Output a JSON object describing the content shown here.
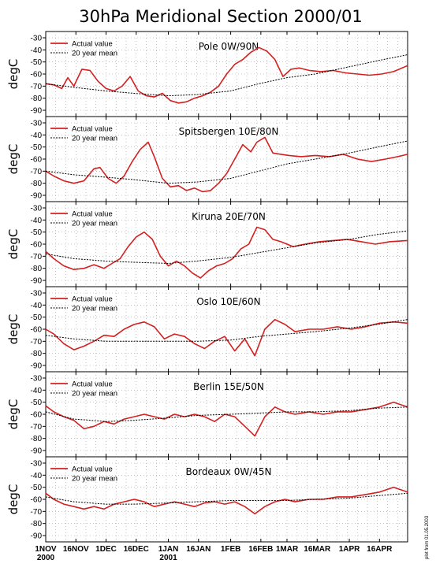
{
  "chart_data": {
    "type": "line",
    "title": "30hPa Meridional Section 2000/01",
    "ylabel": "degC",
    "footnote": "plot from 01.05.2003",
    "ylim": [
      -90,
      -30
    ],
    "yticks": [
      "-30",
      "-40",
      "-50",
      "-60",
      "-70",
      "-80",
      "-90"
    ],
    "xlim": [
      "2000-11-01",
      "2001-04-30"
    ],
    "xticks": [
      {
        "date": "2000-11-01",
        "label": "1NOV",
        "sub": "2000"
      },
      {
        "date": "2000-11-16",
        "label": "16NOV",
        "sub": ""
      },
      {
        "date": "2000-12-01",
        "label": "1DEC",
        "sub": ""
      },
      {
        "date": "2000-12-16",
        "label": "16DEC",
        "sub": ""
      },
      {
        "date": "2001-01-01",
        "label": "1JAN",
        "sub": "2001"
      },
      {
        "date": "2001-01-16",
        "label": "16JAN",
        "sub": ""
      },
      {
        "date": "2001-02-01",
        "label": "1FEB",
        "sub": ""
      },
      {
        "date": "2001-02-16",
        "label": "16FEB",
        "sub": ""
      },
      {
        "date": "2001-03-01",
        "label": "1MAR",
        "sub": ""
      },
      {
        "date": "2001-03-16",
        "label": "16MAR",
        "sub": ""
      },
      {
        "date": "2001-04-01",
        "label": "1APR",
        "sub": ""
      },
      {
        "date": "2001-04-16",
        "label": "16APR",
        "sub": ""
      }
    ],
    "grid": true,
    "legend": {
      "position": "top-left",
      "entries": [
        "Actual value",
        "20 year mean"
      ]
    },
    "colors": {
      "actual": "#d42020",
      "mean": "#000000"
    },
    "panels": [
      {
        "name": "Pole 0W/90N",
        "series": [
          {
            "name": "Actual value",
            "x": [
              "2000-11-01",
              "2000-11-05",
              "2000-11-09",
              "2000-11-12",
              "2000-11-15",
              "2000-11-19",
              "2000-11-23",
              "2000-11-27",
              "2000-12-01",
              "2000-12-05",
              "2000-12-09",
              "2000-12-13",
              "2000-12-17",
              "2000-12-21",
              "2000-12-25",
              "2000-12-29",
              "2001-01-02",
              "2001-01-06",
              "2001-01-10",
              "2001-01-14",
              "2001-01-18",
              "2001-01-22",
              "2001-01-26",
              "2001-01-30",
              "2001-02-03",
              "2001-02-07",
              "2001-02-11",
              "2001-02-15",
              "2001-02-19",
              "2001-02-23",
              "2001-02-27",
              "2001-03-03",
              "2001-03-07",
              "2001-03-12",
              "2001-03-18",
              "2001-03-24",
              "2001-03-30",
              "2001-04-05",
              "2001-04-11",
              "2001-04-17",
              "2001-04-23",
              "2001-04-30"
            ],
            "y": [
              -68,
              -69,
              -72,
              -63,
              -70,
              -56,
              -57,
              -66,
              -72,
              -74,
              -70,
              -62,
              -74,
              -78,
              -79,
              -76,
              -82,
              -84,
              -83,
              -80,
              -78,
              -75,
              -70,
              -60,
              -52,
              -48,
              -42,
              -38,
              -41,
              -48,
              -62,
              -56,
              -55,
              -57,
              -58,
              -57,
              -59,
              -60,
              -61,
              -60,
              -58,
              -53
            ]
          },
          {
            "name": "20 year mean",
            "x": [
              "2000-11-01",
              "2000-11-15",
              "2000-12-01",
              "2000-12-15",
              "2001-01-01",
              "2001-01-15",
              "2001-02-01",
              "2001-02-15",
              "2001-03-01",
              "2001-03-15",
              "2001-04-01",
              "2001-04-15",
              "2001-04-30"
            ],
            "y": [
              -68,
              -71,
              -74,
              -76,
              -78,
              -77,
              -74,
              -68,
              -63,
              -60,
              -54,
              -49,
              -44
            ]
          }
        ]
      },
      {
        "name": "Spitsbergen 10E/80N",
        "series": [
          {
            "name": "Actual value",
            "x": [
              "2000-11-01",
              "2000-11-05",
              "2000-11-10",
              "2000-11-15",
              "2000-11-20",
              "2000-11-25",
              "2000-11-28",
              "2000-12-02",
              "2000-12-06",
              "2000-12-10",
              "2000-12-14",
              "2000-12-18",
              "2000-12-22",
              "2000-12-25",
              "2000-12-29",
              "2001-01-02",
              "2001-01-06",
              "2001-01-10",
              "2001-01-14",
              "2001-01-18",
              "2001-01-22",
              "2001-01-26",
              "2001-01-30",
              "2001-02-03",
              "2001-02-07",
              "2001-02-11",
              "2001-02-14",
              "2001-02-18",
              "2001-02-22",
              "2001-02-26",
              "2001-03-02",
              "2001-03-08",
              "2001-03-15",
              "2001-03-22",
              "2001-03-29",
              "2001-04-05",
              "2001-04-12",
              "2001-04-19",
              "2001-04-25",
              "2001-04-30"
            ],
            "y": [
              -70,
              -74,
              -78,
              -80,
              -78,
              -68,
              -67,
              -76,
              -80,
              -74,
              -62,
              -52,
              -46,
              -58,
              -76,
              -83,
              -82,
              -86,
              -84,
              -87,
              -86,
              -80,
              -72,
              -60,
              -48,
              -54,
              -46,
              -42,
              -55,
              -56,
              -57,
              -58,
              -57,
              -58,
              -56,
              -60,
              -62,
              -60,
              -58,
              -56
            ]
          },
          {
            "name": "20 year mean",
            "x": [
              "2000-11-01",
              "2000-11-15",
              "2000-12-01",
              "2000-12-15",
              "2001-01-01",
              "2001-01-15",
              "2001-02-01",
              "2001-02-15",
              "2001-03-01",
              "2001-03-15",
              "2001-04-01",
              "2001-04-15",
              "2001-04-30"
            ],
            "y": [
              -70,
              -73,
              -75,
              -77,
              -80,
              -79,
              -76,
              -70,
              -64,
              -60,
              -55,
              -50,
              -45
            ]
          }
        ]
      },
      {
        "name": "Kiruna 20E/70N",
        "series": [
          {
            "name": "Actual value",
            "x": [
              "2000-11-01",
              "2000-11-05",
              "2000-11-10",
              "2000-11-15",
              "2000-11-20",
              "2000-11-25",
              "2000-11-30",
              "2000-12-04",
              "2000-12-08",
              "2000-12-12",
              "2000-12-16",
              "2000-12-20",
              "2000-12-24",
              "2000-12-28",
              "2001-01-01",
              "2001-01-05",
              "2001-01-09",
              "2001-01-13",
              "2001-01-17",
              "2001-01-21",
              "2001-01-25",
              "2001-01-29",
              "2001-02-02",
              "2001-02-06",
              "2001-02-10",
              "2001-02-14",
              "2001-02-18",
              "2001-02-22",
              "2001-02-26",
              "2001-03-04",
              "2001-03-10",
              "2001-03-17",
              "2001-03-24",
              "2001-03-31",
              "2001-04-07",
              "2001-04-14",
              "2001-04-21",
              "2001-04-30"
            ],
            "y": [
              -66,
              -72,
              -78,
              -81,
              -80,
              -77,
              -80,
              -76,
              -72,
              -62,
              -54,
              -50,
              -56,
              -70,
              -78,
              -74,
              -78,
              -84,
              -88,
              -82,
              -78,
              -76,
              -72,
              -64,
              -60,
              -46,
              -48,
              -56,
              -58,
              -62,
              -60,
              -58,
              -57,
              -56,
              -58,
              -60,
              -58,
              -57
            ]
          },
          {
            "name": "20 year mean",
            "x": [
              "2000-11-01",
              "2000-11-15",
              "2000-12-01",
              "2000-12-15",
              "2001-01-01",
              "2001-01-15",
              "2001-02-01",
              "2001-02-15",
              "2001-03-01",
              "2001-03-15",
              "2001-04-01",
              "2001-04-15",
              "2001-04-30"
            ],
            "y": [
              -68,
              -72,
              -74,
              -75,
              -76,
              -74,
              -71,
              -67,
              -63,
              -59,
              -56,
              -52,
              -49
            ]
          }
        ]
      },
      {
        "name": "Oslo 10E/60N",
        "series": [
          {
            "name": "Actual value",
            "x": [
              "2000-11-01",
              "2000-11-05",
              "2000-11-10",
              "2000-11-15",
              "2000-11-20",
              "2000-11-25",
              "2000-11-30",
              "2000-12-05",
              "2000-12-10",
              "2000-12-15",
              "2000-12-20",
              "2000-12-25",
              "2000-12-30",
              "2001-01-04",
              "2001-01-09",
              "2001-01-14",
              "2001-01-19",
              "2001-01-24",
              "2001-01-29",
              "2001-02-03",
              "2001-02-08",
              "2001-02-13",
              "2001-02-18",
              "2001-02-23",
              "2001-02-28",
              "2001-03-05",
              "2001-03-12",
              "2001-03-19",
              "2001-03-26",
              "2001-04-02",
              "2001-04-09",
              "2001-04-16",
              "2001-04-23",
              "2001-04-30"
            ],
            "y": [
              -60,
              -64,
              -72,
              -77,
              -74,
              -70,
              -65,
              -66,
              -60,
              -56,
              -54,
              -58,
              -68,
              -64,
              -66,
              -72,
              -76,
              -70,
              -66,
              -78,
              -68,
              -82,
              -60,
              -52,
              -56,
              -62,
              -60,
              -60,
              -58,
              -60,
              -58,
              -55,
              -54,
              -55
            ]
          },
          {
            "name": "20 year mean",
            "x": [
              "2000-11-01",
              "2000-11-15",
              "2000-12-01",
              "2000-12-15",
              "2001-01-01",
              "2001-01-15",
              "2001-02-01",
              "2001-02-15",
              "2001-03-01",
              "2001-03-15",
              "2001-04-01",
              "2001-04-15",
              "2001-04-30"
            ],
            "y": [
              -65,
              -68,
              -70,
              -70,
              -70,
              -70,
              -69,
              -66,
              -64,
              -62,
              -59,
              -56,
              -52
            ]
          }
        ]
      },
      {
        "name": "Berlin 15E/50N",
        "series": [
          {
            "name": "Actual value",
            "x": [
              "2000-11-01",
              "2000-11-05",
              "2000-11-10",
              "2000-11-15",
              "2000-11-20",
              "2000-11-25",
              "2000-11-30",
              "2000-12-05",
              "2000-12-10",
              "2000-12-15",
              "2000-12-20",
              "2000-12-25",
              "2000-12-30",
              "2001-01-04",
              "2001-01-09",
              "2001-01-14",
              "2001-01-19",
              "2001-01-24",
              "2001-01-29",
              "2001-02-03",
              "2001-02-08",
              "2001-02-13",
              "2001-02-18",
              "2001-02-23",
              "2001-02-28",
              "2001-03-05",
              "2001-03-12",
              "2001-03-19",
              "2001-03-26",
              "2001-04-02",
              "2001-04-09",
              "2001-04-16",
              "2001-04-23",
              "2001-04-30"
            ],
            "y": [
              -53,
              -58,
              -62,
              -65,
              -72,
              -70,
              -66,
              -68,
              -64,
              -62,
              -60,
              -62,
              -64,
              -60,
              -62,
              -60,
              -62,
              -66,
              -60,
              -62,
              -70,
              -78,
              -62,
              -54,
              -58,
              -60,
              -58,
              -60,
              -58,
              -58,
              -56,
              -54,
              -50,
              -54
            ]
          },
          {
            "name": "20 year mean",
            "x": [
              "2000-11-01",
              "2000-11-15",
              "2000-12-01",
              "2000-12-15",
              "2001-01-01",
              "2001-01-15",
              "2001-02-01",
              "2001-02-15",
              "2001-03-01",
              "2001-03-15",
              "2001-04-01",
              "2001-04-15",
              "2001-04-30"
            ],
            "y": [
              -58,
              -64,
              -66,
              -65,
              -63,
              -61,
              -60,
              -59,
              -58,
              -58,
              -57,
              -55,
              -54
            ]
          }
        ]
      },
      {
        "name": "Bordeaux 0W/45N",
        "series": [
          {
            "name": "Actual value",
            "x": [
              "2000-11-01",
              "2000-11-05",
              "2000-11-10",
              "2000-11-15",
              "2000-11-20",
              "2000-11-25",
              "2000-11-30",
              "2000-12-05",
              "2000-12-10",
              "2000-12-15",
              "2000-12-20",
              "2000-12-25",
              "2000-12-30",
              "2001-01-04",
              "2001-01-09",
              "2001-01-14",
              "2001-01-19",
              "2001-01-24",
              "2001-01-29",
              "2001-02-03",
              "2001-02-08",
              "2001-02-13",
              "2001-02-18",
              "2001-02-23",
              "2001-02-28",
              "2001-03-05",
              "2001-03-12",
              "2001-03-19",
              "2001-03-26",
              "2001-04-02",
              "2001-04-09",
              "2001-04-16",
              "2001-04-23",
              "2001-04-30"
            ],
            "y": [
              -55,
              -60,
              -64,
              -66,
              -68,
              -66,
              -68,
              -64,
              -62,
              -60,
              -62,
              -66,
              -64,
              -62,
              -64,
              -66,
              -63,
              -62,
              -64,
              -62,
              -66,
              -72,
              -66,
              -62,
              -60,
              -62,
              -60,
              -60,
              -58,
              -58,
              -56,
              -54,
              -50,
              -54
            ]
          },
          {
            "name": "20 year mean",
            "x": [
              "2000-11-01",
              "2000-11-15",
              "2000-12-01",
              "2000-12-15",
              "2001-01-01",
              "2001-01-15",
              "2001-02-01",
              "2001-02-15",
              "2001-03-01",
              "2001-03-15",
              "2001-04-01",
              "2001-04-15",
              "2001-04-30"
            ],
            "y": [
              -58,
              -62,
              -64,
              -64,
              -63,
              -62,
              -61,
              -61,
              -61,
              -60,
              -59,
              -57,
              -55
            ]
          }
        ]
      }
    ]
  }
}
